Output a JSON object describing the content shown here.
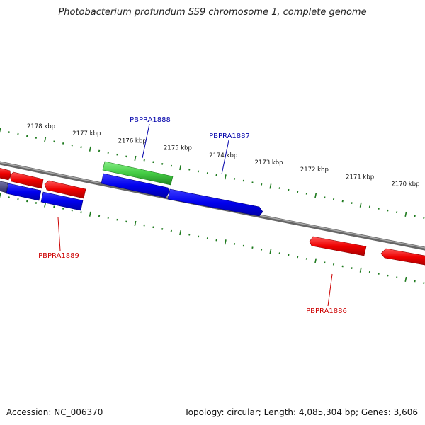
{
  "title": "Photobacterium profundum SS9 chromosome 1, complete genome",
  "footer": {
    "accession": "Accession: NC_006370",
    "summary": "Topology: circular; Length: 4,085,304 bp; Genes: 3,606"
  },
  "colors": {
    "backbone": "#7a7a7a",
    "tick": "#1e7a1e",
    "gene_red": "#e60000",
    "gene_blue": "#0000dd",
    "gene_green": "#33bb33",
    "gene_slate": "#555588",
    "label_blue": "#0000aa",
    "label_red": "#cc0000"
  },
  "chart_data": {
    "type": "genome-map",
    "unit": "kbp",
    "position_labels": [
      "2178 kbp",
      "2177 kbp",
      "2176 kbp",
      "2175 kbp",
      "2174 kbp",
      "2173 kbp",
      "2172 kbp",
      "2171 kbp",
      "2170 kbp"
    ],
    "gene_labels": [
      {
        "name": "PBPRA1888",
        "color": "blue"
      },
      {
        "name": "PBPRA1887",
        "color": "blue"
      },
      {
        "name": "PBPRA1889",
        "color": "red"
      },
      {
        "name": "PBPRA1886",
        "color": "red"
      }
    ]
  }
}
